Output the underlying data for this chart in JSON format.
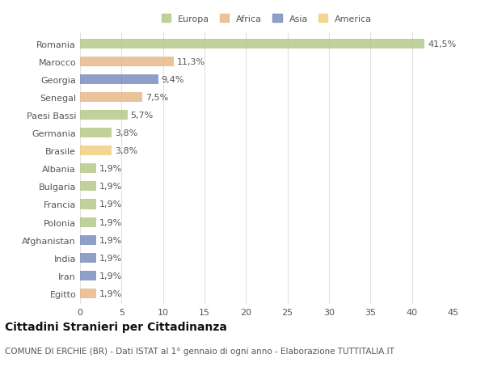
{
  "countries": [
    "Romania",
    "Marocco",
    "Georgia",
    "Senegal",
    "Paesi Bassi",
    "Germania",
    "Brasile",
    "Albania",
    "Bulgaria",
    "Francia",
    "Polonia",
    "Afghanistan",
    "India",
    "Iran",
    "Egitto"
  ],
  "values": [
    41.5,
    11.3,
    9.4,
    7.5,
    5.7,
    3.8,
    3.8,
    1.9,
    1.9,
    1.9,
    1.9,
    1.9,
    1.9,
    1.9,
    1.9
  ],
  "labels": [
    "41,5%",
    "11,3%",
    "9,4%",
    "7,5%",
    "5,7%",
    "3,8%",
    "3,8%",
    "1,9%",
    "1,9%",
    "1,9%",
    "1,9%",
    "1,9%",
    "1,9%",
    "1,9%",
    "1,9%"
  ],
  "colors": [
    "#b5c98a",
    "#e8b98a",
    "#7a8fbf",
    "#e8b98a",
    "#b5c98a",
    "#b5c98a",
    "#f0d080",
    "#b5c98a",
    "#b5c98a",
    "#b5c98a",
    "#b5c98a",
    "#7a8fbf",
    "#7a8fbf",
    "#7a8fbf",
    "#e8b98a"
  ],
  "legend_labels": [
    "Europa",
    "Africa",
    "Asia",
    "America"
  ],
  "legend_colors": [
    "#b5c98a",
    "#e8b98a",
    "#7a8fbf",
    "#f0d080"
  ],
  "title": "Cittadini Stranieri per Cittadinanza",
  "subtitle": "COMUNE DI ERCHIE (BR) - Dati ISTAT al 1° gennaio di ogni anno - Elaborazione TUTTITALIA.IT",
  "xlim": [
    0,
    45
  ],
  "xticks": [
    0,
    5,
    10,
    15,
    20,
    25,
    30,
    35,
    40,
    45
  ],
  "background_color": "#ffffff",
  "grid_color": "#e0e0e0",
  "bar_height": 0.55,
  "label_fontsize": 8,
  "tick_fontsize": 8,
  "title_fontsize": 10,
  "subtitle_fontsize": 7.5
}
